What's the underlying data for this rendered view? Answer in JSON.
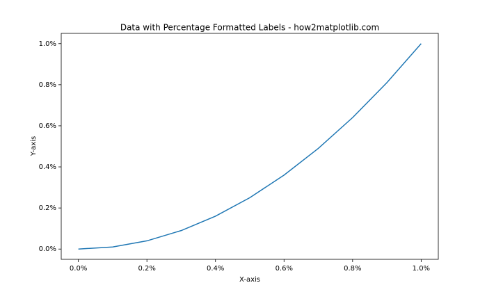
{
  "chart_data": {
    "type": "line",
    "title": "Data with Percentage Formatted Labels - how2matplotlib.com",
    "x_label": "X-axis",
    "y_label": "Y-axis",
    "x": [
      0,
      0.1,
      0.2,
      0.3,
      0.4,
      0.5,
      0.6,
      0.7,
      0.8,
      0.9,
      1.0
    ],
    "series": [
      {
        "color": "#1f77b4",
        "values": [
          0,
          0.01,
          0.04,
          0.09,
          0.16,
          0.25,
          0.36,
          0.49,
          0.64,
          0.81,
          1.0
        ]
      }
    ],
    "xlim": [
      -0.05,
      1.05
    ],
    "ylim": [
      -0.05,
      1.05
    ],
    "xticks": [
      {
        "value": 0,
        "label": "0.0%"
      },
      {
        "value": 0.2,
        "label": "0.2%"
      },
      {
        "value": 0.4,
        "label": "0.4%"
      },
      {
        "value": 0.6,
        "label": "0.6%"
      },
      {
        "value": 0.8,
        "label": "0.8%"
      },
      {
        "value": 1.0,
        "label": "1.0%"
      }
    ],
    "yticks": [
      {
        "value": 0,
        "label": "0.0%"
      },
      {
        "value": 0.2,
        "label": "0.2%"
      },
      {
        "value": 0.4,
        "label": "0.4%"
      },
      {
        "value": 0.6,
        "label": "0.6%"
      },
      {
        "value": 0.8,
        "label": "0.8%"
      },
      {
        "value": 1.0,
        "label": "1.0%"
      }
    ],
    "grid": false
  }
}
